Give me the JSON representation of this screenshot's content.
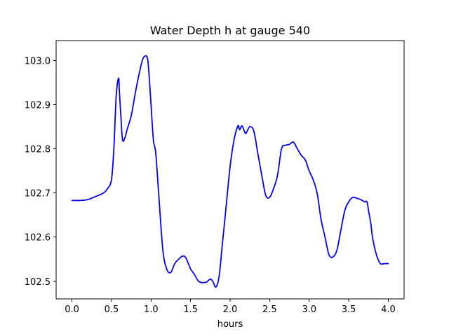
{
  "chart_data": {
    "type": "line",
    "title": "Water Depth h at gauge 540",
    "xlabel": "hours",
    "ylabel": "",
    "xlim": [
      -0.2,
      4.2
    ],
    "ylim": [
      102.46,
      103.045
    ],
    "grid": false,
    "legend": "none",
    "xticks": [
      0.0,
      0.5,
      1.0,
      1.5,
      2.0,
      2.5,
      3.0,
      3.5,
      4.0
    ],
    "xtick_labels": [
      "0.0",
      "0.5",
      "1.0",
      "1.5",
      "2.0",
      "2.5",
      "3.0",
      "3.5",
      "4.0"
    ],
    "yticks": [
      102.5,
      102.6,
      102.7,
      102.8,
      102.9,
      103.0
    ],
    "ytick_labels": [
      "102.5",
      "102.6",
      "102.7",
      "102.8",
      "102.9",
      "103.0"
    ],
    "series": [
      {
        "color": "#0000ff",
        "x": [
          0.0,
          0.1,
          0.2,
          0.3,
          0.4,
          0.45,
          0.5,
          0.53,
          0.56,
          0.59,
          0.6,
          0.62,
          0.64,
          0.67,
          0.7,
          0.75,
          0.8,
          0.85,
          0.9,
          0.95,
          0.97,
          1.0,
          1.03,
          1.06,
          1.1,
          1.15,
          1.2,
          1.25,
          1.3,
          1.35,
          1.4,
          1.44,
          1.5,
          1.55,
          1.6,
          1.65,
          1.7,
          1.75,
          1.78,
          1.82,
          1.86,
          1.9,
          1.95,
          2.0,
          2.05,
          2.1,
          2.12,
          2.15,
          2.18,
          2.2,
          2.25,
          2.3,
          2.35,
          2.4,
          2.45,
          2.5,
          2.55,
          2.6,
          2.65,
          2.7,
          2.75,
          2.8,
          2.85,
          2.9,
          2.95,
          3.0,
          3.05,
          3.1,
          3.15,
          3.2,
          3.25,
          3.3,
          3.35,
          3.4,
          3.45,
          3.5,
          3.55,
          3.6,
          3.65,
          3.7,
          3.73,
          3.75,
          3.78,
          3.8,
          3.85,
          3.9,
          3.95,
          4.0
        ],
        "y": [
          102.683,
          102.683,
          102.685,
          102.692,
          102.7,
          102.71,
          102.73,
          102.8,
          102.92,
          102.96,
          102.93,
          102.87,
          102.82,
          102.825,
          102.845,
          102.875,
          102.925,
          102.97,
          103.005,
          103.008,
          102.98,
          102.9,
          102.82,
          102.79,
          102.69,
          102.57,
          102.527,
          102.52,
          102.54,
          102.55,
          102.557,
          102.553,
          102.528,
          102.515,
          102.5,
          102.497,
          102.498,
          102.505,
          102.5,
          102.487,
          102.51,
          102.58,
          102.67,
          102.76,
          102.82,
          102.852,
          102.843,
          102.852,
          102.84,
          102.835,
          102.85,
          102.84,
          102.79,
          102.74,
          102.695,
          102.69,
          102.71,
          102.74,
          102.8,
          102.808,
          102.81,
          102.815,
          102.8,
          102.785,
          102.775,
          102.75,
          102.73,
          102.7,
          102.64,
          102.6,
          102.56,
          102.555,
          102.57,
          102.615,
          102.66,
          102.68,
          102.69,
          102.688,
          102.685,
          102.68,
          102.68,
          102.66,
          102.63,
          102.6,
          102.56,
          102.54,
          102.54,
          102.54
        ]
      }
    ]
  }
}
